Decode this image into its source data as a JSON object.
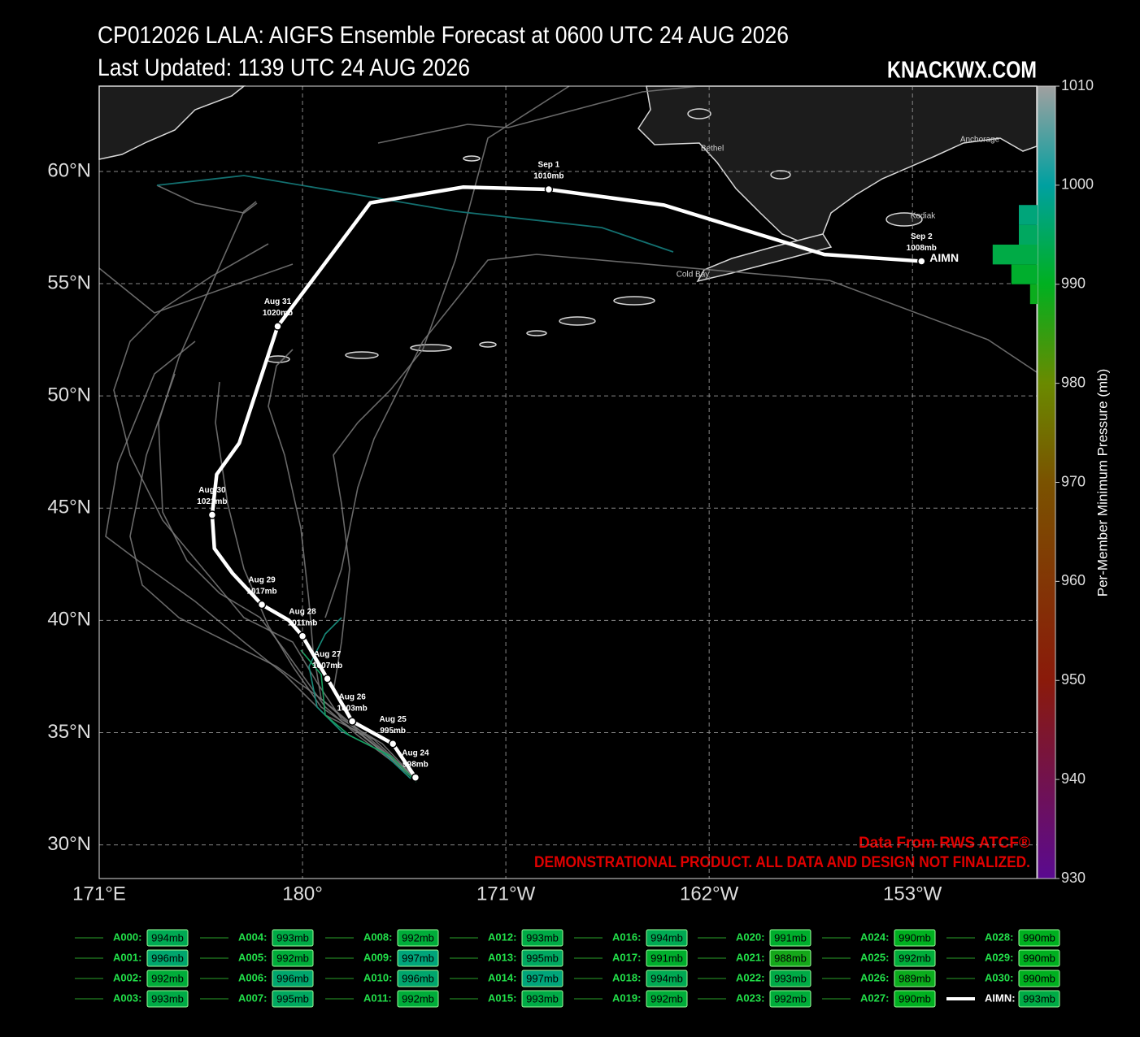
{
  "chart_data": {
    "type": "track-map",
    "title": "CP012026 LALA: AIGFS Ensemble Forecast at 0600 UTC 24 AUG 2026",
    "subtitle": "Last Updated: 1139 UTC 24 AUG 2026",
    "site": "KNACKWX.COM",
    "notes": [
      "Data From RWS ATCF®",
      "DEMONSTRATIONAL PRODUCT. ALL DATA AND DESIGN NOT FINALIZED."
    ],
    "place_labels": [
      "Bethel",
      "Anchorage",
      "Kodiak",
      "Cold Bay"
    ],
    "grid": true,
    "xlim": [
      171,
      212.5
    ],
    "ylim": [
      28.5,
      63.8
    ],
    "xticks": [
      {
        "value": 171,
        "label": "171°E"
      },
      {
        "value": 180,
        "label": "180°"
      },
      {
        "value": 189,
        "label": "171°W"
      },
      {
        "value": 198,
        "label": "162°W"
      },
      {
        "value": 207,
        "label": "153°W"
      }
    ],
    "yticks": [
      {
        "value": 30,
        "label": "30°N"
      },
      {
        "value": 35,
        "label": "35°N"
      },
      {
        "value": 40,
        "label": "40°N"
      },
      {
        "value": 45,
        "label": "45°N"
      },
      {
        "value": 50,
        "label": "50°N"
      },
      {
        "value": 55,
        "label": "55°N"
      },
      {
        "value": 60,
        "label": "60°N"
      }
    ],
    "track": {
      "name": "AIMN",
      "color": "#ffffff",
      "lon": [
        185.0,
        184.0,
        182.2,
        181.1,
        180.0,
        179.4,
        178.2,
        176.9,
        176.1,
        176.0,
        176.2,
        177.2,
        178.9,
        183.0,
        187.1,
        190.9,
        196.0,
        203.1,
        207.4
      ],
      "lat": [
        33.0,
        34.5,
        35.5,
        37.4,
        39.3,
        40.0,
        40.7,
        42.1,
        43.2,
        44.7,
        46.5,
        47.9,
        53.1,
        58.6,
        59.3,
        59.2,
        58.5,
        56.3,
        56.0
      ],
      "dates": [
        "Aug 24",
        "Aug 25",
        "Aug 26",
        "Aug 27",
        "Aug 28",
        null,
        "Aug 29",
        null,
        null,
        "Aug 30",
        null,
        null,
        "Aug 31",
        null,
        null,
        "Sep  1",
        null,
        null,
        "Sep  2"
      ],
      "pressure_labels": [
        "998mb",
        "995mb",
        "1003mb",
        "1007mb",
        "1011mb",
        null,
        "1017mb",
        null,
        null,
        "1021mb",
        null,
        null,
        "1020mb",
        null,
        null,
        "1010mb",
        null,
        null,
        "1008mb"
      ]
    },
    "colorbar": {
      "label": "Per-Member Minimum Pressure (mb)",
      "lim": [
        930,
        1010
      ],
      "ticks": [
        930,
        940,
        950,
        960,
        970,
        980,
        990,
        1000,
        1010
      ],
      "colormap": [
        {
          "value": 930,
          "color": "#5a0a90"
        },
        {
          "value": 950,
          "color": "#8a1a0a"
        },
        {
          "value": 970,
          "color": "#7a5200"
        },
        {
          "value": 980,
          "color": "#6a8a00"
        },
        {
          "value": 990,
          "color": "#00b020"
        },
        {
          "value": 1000,
          "color": "#00a0a0"
        },
        {
          "value": 1010,
          "color": "#a0a0a0"
        }
      ]
    },
    "histogram": {
      "bins": [
        988,
        990,
        992,
        994,
        996,
        998
      ],
      "counts": [
        2,
        7,
        12,
        5,
        5
      ]
    },
    "members": [
      {
        "name": "A000:",
        "pressure": 994,
        "pressure_label": "994mb"
      },
      {
        "name": "A001:",
        "pressure": 996,
        "pressure_label": "996mb"
      },
      {
        "name": "A002:",
        "pressure": 992,
        "pressure_label": "992mb"
      },
      {
        "name": "A003:",
        "pressure": 993,
        "pressure_label": "993mb"
      },
      {
        "name": "A004:",
        "pressure": 993,
        "pressure_label": "993mb"
      },
      {
        "name": "A005:",
        "pressure": 992,
        "pressure_label": "992mb"
      },
      {
        "name": "A006:",
        "pressure": 996,
        "pressure_label": "996mb"
      },
      {
        "name": "A007:",
        "pressure": 995,
        "pressure_label": "995mb"
      },
      {
        "name": "A008:",
        "pressure": 992,
        "pressure_label": "992mb"
      },
      {
        "name": "A009:",
        "pressure": 997,
        "pressure_label": "997mb"
      },
      {
        "name": "A010:",
        "pressure": 996,
        "pressure_label": "996mb"
      },
      {
        "name": "A011:",
        "pressure": 992,
        "pressure_label": "992mb"
      },
      {
        "name": "A012:",
        "pressure": 993,
        "pressure_label": "993mb"
      },
      {
        "name": "A013:",
        "pressure": 995,
        "pressure_label": "995mb"
      },
      {
        "name": "A014:",
        "pressure": 997,
        "pressure_label": "997mb"
      },
      {
        "name": "A015:",
        "pressure": 993,
        "pressure_label": "993mb"
      },
      {
        "name": "A016:",
        "pressure": 994,
        "pressure_label": "994mb"
      },
      {
        "name": "A017:",
        "pressure": 991,
        "pressure_label": "991mb"
      },
      {
        "name": "A018:",
        "pressure": 994,
        "pressure_label": "994mb"
      },
      {
        "name": "A019:",
        "pressure": 992,
        "pressure_label": "992mb"
      },
      {
        "name": "A020:",
        "pressure": 991,
        "pressure_label": "991mb"
      },
      {
        "name": "A021:",
        "pressure": 988,
        "pressure_label": "988mb"
      },
      {
        "name": "A022:",
        "pressure": 993,
        "pressure_label": "993mb"
      },
      {
        "name": "A023:",
        "pressure": 992,
        "pressure_label": "992mb"
      },
      {
        "name": "A024:",
        "pressure": 990,
        "pressure_label": "990mb"
      },
      {
        "name": "A025:",
        "pressure": 992,
        "pressure_label": "992mb"
      },
      {
        "name": "A026:",
        "pressure": 989,
        "pressure_label": "989mb"
      },
      {
        "name": "A027:",
        "pressure": 990,
        "pressure_label": "990mb"
      },
      {
        "name": "A028:",
        "pressure": 990,
        "pressure_label": "990mb"
      },
      {
        "name": "A029:",
        "pressure": 990,
        "pressure_label": "990mb"
      },
      {
        "name": "A030:",
        "pressure": 990,
        "pressure_label": "990mb"
      },
      {
        "name": "AIMN:",
        "pressure": 993,
        "pressure_label": "993mb"
      }
    ]
  }
}
